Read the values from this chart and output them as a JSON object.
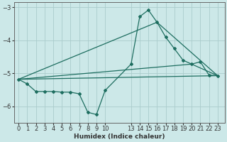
{
  "xlabel": "Humidex (Indice chaleur)",
  "bg_color": "#cce8e8",
  "grid_color": "#aacccc",
  "line_color": "#1e6e60",
  "xlim": [
    -0.5,
    23.8
  ],
  "ylim": [
    -6.5,
    -2.85
  ],
  "xticks": [
    0,
    1,
    2,
    3,
    4,
    5,
    6,
    7,
    8,
    9,
    10,
    13,
    14,
    15,
    16,
    17,
    18,
    19,
    20,
    21,
    22,
    23
  ],
  "yticks": [
    -3,
    -4,
    -5,
    -6
  ],
  "series1_x": [
    0,
    1,
    2,
    3,
    4,
    5,
    6,
    7,
    8,
    9,
    10,
    13,
    14,
    15,
    16,
    17,
    18,
    19,
    20,
    21,
    22,
    23
  ],
  "series1_y": [
    -5.18,
    -5.32,
    -5.55,
    -5.55,
    -5.55,
    -5.57,
    -5.57,
    -5.62,
    -6.18,
    -6.25,
    -5.52,
    -4.72,
    -3.28,
    -3.08,
    -3.45,
    -3.9,
    -4.25,
    -4.6,
    -4.72,
    -4.65,
    -5.05,
    -5.07
  ],
  "line2_x": [
    0,
    23
  ],
  "line2_y": [
    -5.18,
    -5.07
  ],
  "line3_x": [
    0,
    16,
    23
  ],
  "line3_y": [
    -5.18,
    -3.45,
    -5.07
  ],
  "line4_x": [
    0,
    20,
    23
  ],
  "line4_y": [
    -5.18,
    -4.72,
    -5.07
  ]
}
